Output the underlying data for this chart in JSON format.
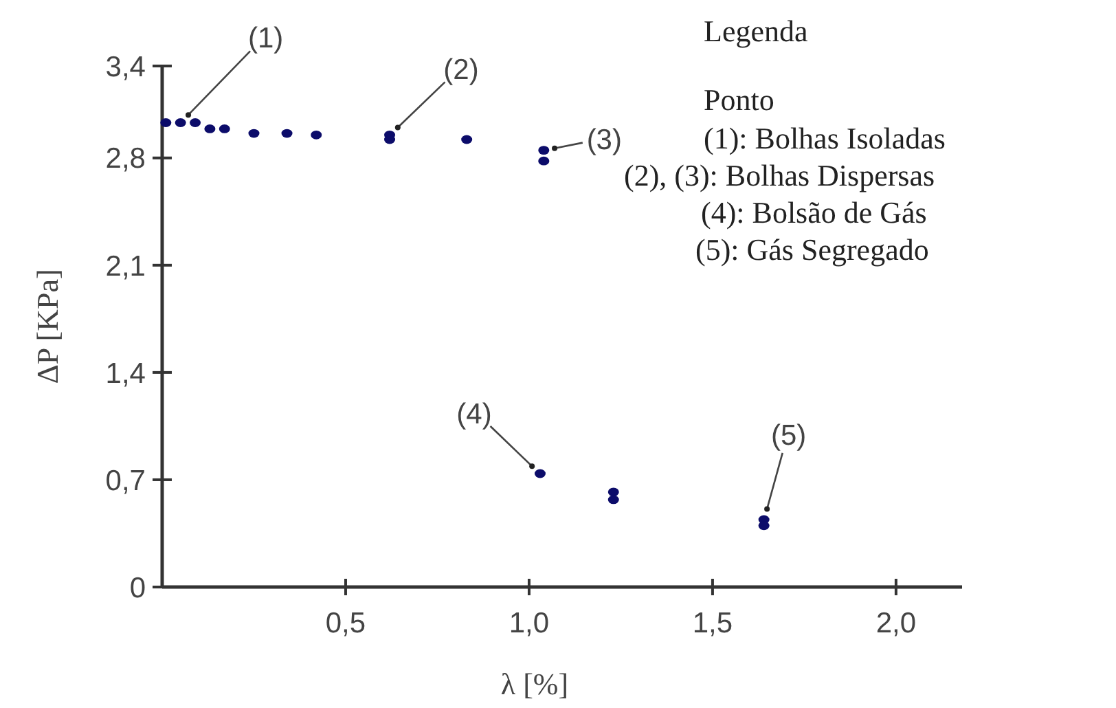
{
  "chart_data": {
    "type": "scatter",
    "xlabel": "λ [%]",
    "ylabel": "ΔP [KPa]",
    "x": [
      0.01,
      0.05,
      0.09,
      0.13,
      0.17,
      0.25,
      0.34,
      0.42,
      0.62,
      0.62,
      0.83,
      1.04,
      1.04,
      1.03,
      1.23,
      1.23,
      1.64,
      1.64
    ],
    "series": [
      {
        "color": "#0c0c6a",
        "values": [
          3.03,
          3.03,
          3.03,
          2.99,
          2.99,
          2.96,
          2.96,
          2.95,
          2.95,
          2.92,
          2.92,
          2.85,
          2.78,
          0.74,
          0.62,
          0.57,
          0.44,
          0.4
        ]
      }
    ],
    "xlim": [
      0,
      2.18
    ],
    "xticks": [
      {
        "value": 0.5,
        "label": "0,5"
      },
      {
        "value": 1,
        "label": "1,0"
      },
      {
        "value": 1.5,
        "label": "1,5"
      },
      {
        "value": 2,
        "label": "2,0"
      }
    ],
    "ylim": [
      0,
      3.4
    ],
    "yticks": [
      0,
      {
        "value": 0.7,
        "label": "0,7"
      },
      {
        "value": 1.4,
        "label": "1,4"
      },
      {
        "value": 2.1,
        "label": "2,1"
      },
      {
        "value": 2.8,
        "label": "2,8"
      },
      {
        "value": 3.4,
        "label": "3,4"
      }
    ],
    "marker": "circle",
    "grid": false,
    "annotations": [
      {
        "text": "(1)",
        "x": 0.05,
        "y": 3.03
      },
      {
        "text": "(2)",
        "x": 0.62,
        "y": 2.95
      },
      {
        "text": "(3)",
        "x": 1.04,
        "y": 2.85
      },
      {
        "text": "(4)",
        "x": 1.03,
        "y": 0.74
      },
      {
        "text": "(5)",
        "x": 1.64,
        "y": 0.44
      },
      "Legenda",
      "Ponto",
      "(1): Bolhas Isoladas",
      "(2), (3): Bolhas Dispersas",
      "(4): Bolsão de Gás",
      "(5): Gás Segregado"
    ]
  }
}
